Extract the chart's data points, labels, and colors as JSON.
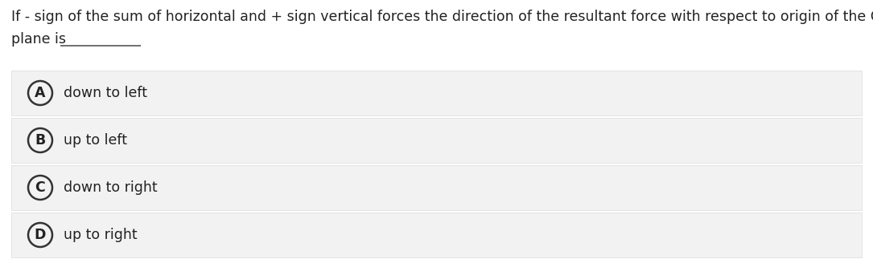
{
  "background_color": "#ffffff",
  "question_line1": "If - sign of the sum of horizontal and + sign vertical forces the direction of the resultant force with respect to origin of the Cartesian",
  "question_line2": "plane is",
  "underline_text": "___________",
  "options": [
    {
      "label": "A",
      "text": "down to left"
    },
    {
      "label": "B",
      "text": "up to left"
    },
    {
      "label": "C",
      "text": "down to right"
    },
    {
      "label": "D",
      "text": "up to right"
    }
  ],
  "option_bg_color": "#f2f2f2",
  "option_border_color": "#e0e0e0",
  "circle_edge_color": "#333333",
  "text_color": "#222222",
  "question_fontsize": 12.5,
  "option_fontsize": 12.5,
  "label_fontsize": 12.5,
  "fig_width": 10.85,
  "fig_height": 3.23,
  "dpi": 100
}
